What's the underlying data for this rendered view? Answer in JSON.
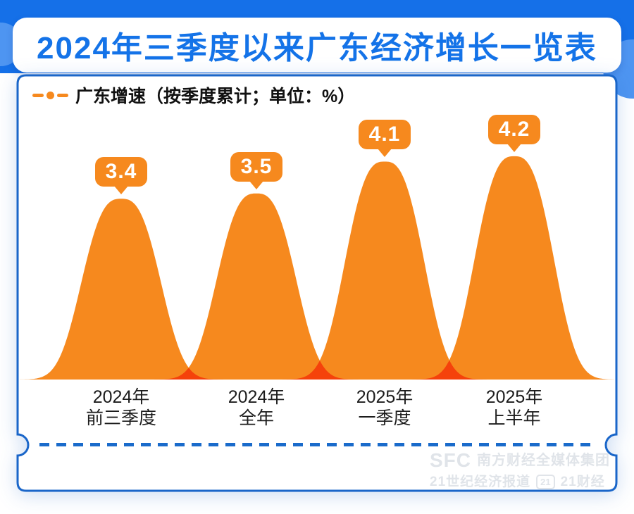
{
  "title": "2024年三季度以来广东经济增长一览表",
  "legend": {
    "icon": "dash-dot-dash",
    "label": "广东增速（按季度累计；单位：%）"
  },
  "chart_data": {
    "type": "area",
    "series_name": "广东增速",
    "unit": "%",
    "categories": [
      [
        "2024年",
        "前三季度"
      ],
      [
        "2024年",
        "全年"
      ],
      [
        "2025年",
        "一季度"
      ],
      [
        "2025年",
        "上半年"
      ]
    ],
    "values": [
      3.4,
      3.5,
      4.1,
      4.2
    ],
    "value_labels": [
      "3.4",
      "3.5",
      "4.1",
      "4.2"
    ],
    "grid": false,
    "axes_shown": false,
    "legend_position": "top-left",
    "colors": {
      "area": "#F6891E",
      "overlap": "#F5420B"
    }
  },
  "watermark": {
    "sfc": "SFC",
    "group": "南方财经全媒体集团",
    "line2_left": "21世纪经济报道",
    "badge": "21",
    "line2_right": "21财经"
  },
  "colors": {
    "background_blue": "#1570E8",
    "light_blue": "#4E95F1",
    "title_blue": "#1473E8",
    "card_border": "#1A66C9",
    "dash_blue": "#1A6BCB",
    "orange": "#F6891E",
    "overlap_red": "#F5420B",
    "text_dark": "#1C1C1C",
    "watermark_gray": "#E0E4E9"
  }
}
